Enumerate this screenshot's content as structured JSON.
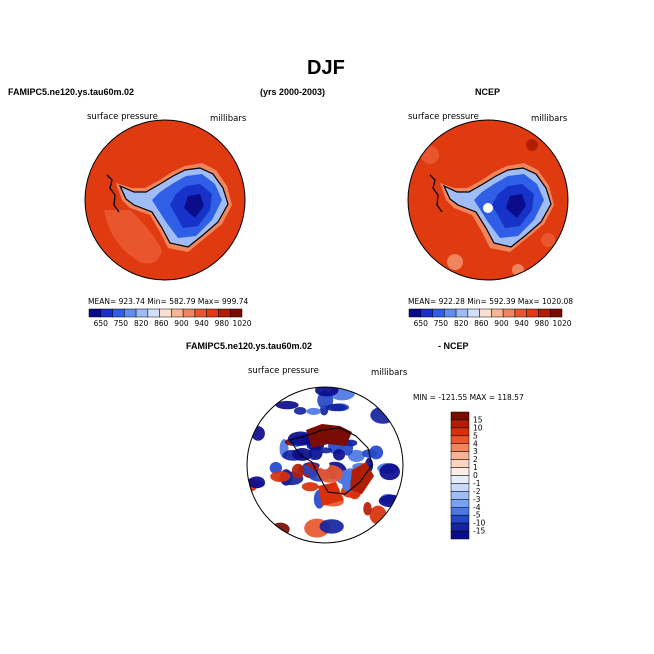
{
  "page": {
    "title": "DJF",
    "case_name": "FAMIPC5.ne120.ys.tau60m.02",
    "years": "(yrs 2000-2003)",
    "obs_name": "NCEP",
    "diff_case": "FAMIPC5.ne120.ys.tau60m.02",
    "diff_obs": "- NCEP"
  },
  "chart_data": [
    {
      "type": "heatmap",
      "projection": "south polar stereographic",
      "variable": "surface pressure",
      "units": "millibars",
      "stats": "MEAN= 923.74   Min= 582.79   Max= 999.74",
      "colorbar_orientation": "horizontal",
      "levels": [
        "650",
        "750",
        "820",
        "860",
        "900",
        "940",
        "980",
        "1020"
      ],
      "colors": [
        "#0b0c8c",
        "#1632c8",
        "#2e5fe6",
        "#5f8ef0",
        "#9fbcf5",
        "#d0e0fa",
        "#fbe0cf",
        "#f7b394",
        "#f1855e",
        "#e9562d",
        "#e03a10",
        "#b21d06",
        "#7a0c03"
      ]
    },
    {
      "type": "heatmap",
      "projection": "south polar stereographic",
      "variable": "surface pressure",
      "units": "millibars",
      "stats": "MEAN= 922.28   Min= 592.39   Max= 1020.08",
      "colorbar_orientation": "horizontal",
      "levels": [
        "650",
        "750",
        "820",
        "860",
        "900",
        "940",
        "980",
        "1020"
      ],
      "colors": [
        "#0b0c8c",
        "#1632c8",
        "#2e5fe6",
        "#5f8ef0",
        "#9fbcf5",
        "#d0e0fa",
        "#fbe0cf",
        "#f7b394",
        "#f1855e",
        "#e9562d",
        "#e03a10",
        "#b21d06",
        "#7a0c03"
      ]
    },
    {
      "type": "heatmap",
      "projection": "south polar stereographic",
      "variable": "surface pressure",
      "units": "millibars",
      "stats": "MIN = -121.55  MAX = 118.57",
      "colorbar_orientation": "vertical",
      "levels": [
        "15",
        "10",
        "5",
        "4",
        "3",
        "2",
        "1",
        "0",
        "-1",
        "-2",
        "-3",
        "-4",
        "-5",
        "-10",
        "-15"
      ],
      "colors": [
        "#7a0c03",
        "#b21d06",
        "#d8300a",
        "#e9562d",
        "#f1855e",
        "#f7b394",
        "#fbd3bf",
        "#fdeee5",
        "#e6eefb",
        "#c8d8f7",
        "#9fbcf5",
        "#7aa0f0",
        "#4d78e4",
        "#2447c9",
        "#14239e",
        "#0b0c8c"
      ]
    }
  ]
}
